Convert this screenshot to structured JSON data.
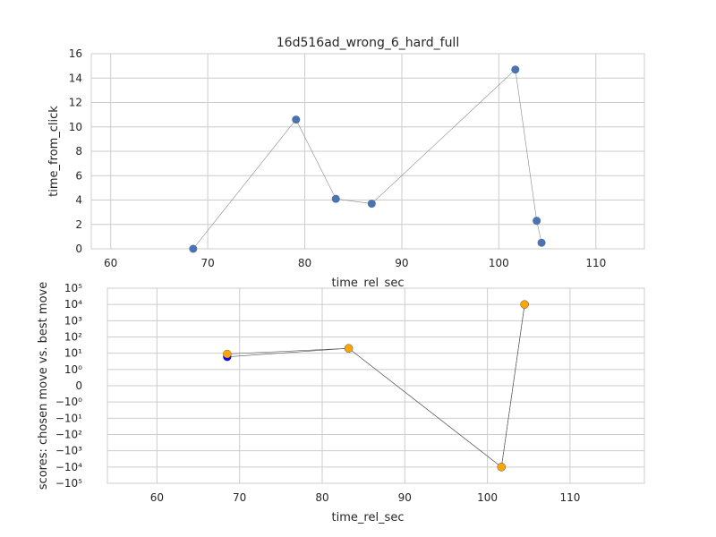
{
  "chart_data": [
    {
      "type": "line",
      "title": "16d516ad_wrong_6_hard_full",
      "xlabel": "time_rel_sec",
      "ylabel": "time_from_click",
      "xlim": [
        58,
        115
      ],
      "ylim": [
        0,
        16
      ],
      "xticks": [
        "60",
        "70",
        "80",
        "90",
        "100",
        "110"
      ],
      "yticks": [
        "0",
        "2",
        "4",
        "6",
        "8",
        "10",
        "12",
        "14",
        "16"
      ],
      "grid": true,
      "series": [
        {
          "color": "#4c72b0",
          "line_color": "#888888",
          "x": [
            68.5,
            79.1,
            83.2,
            86.9,
            101.7,
            103.9,
            104.4
          ],
          "y": [
            0.0,
            10.6,
            4.1,
            3.7,
            14.7,
            2.3,
            0.5
          ]
        }
      ]
    },
    {
      "type": "line",
      "title": "",
      "xlabel": "time_rel_sec",
      "ylabel": "scores: chosen move vs. best move",
      "xlim": [
        54,
        119
      ],
      "yscale": "symlog",
      "ylim": [
        -100000,
        100000
      ],
      "xticks": [
        "60",
        "70",
        "80",
        "90",
        "100",
        "110"
      ],
      "yticks": [
        "10⁵",
        "10⁴",
        "10³",
        "10²",
        "10¹",
        "10⁰",
        "0",
        "−10⁰",
        "−10¹",
        "−10²",
        "−10³",
        "−10⁴",
        "−10⁵"
      ],
      "grid": true,
      "series": [
        {
          "color": "#0000ff",
          "line_color": "#555555",
          "x": [
            68.5,
            83.2,
            101.7,
            104.5
          ],
          "y": [
            6,
            20,
            -10000,
            10000
          ]
        },
        {
          "color": "#ffa500",
          "line_color": "#555555",
          "x": [
            68.5,
            83.2,
            101.7,
            104.5
          ],
          "y": [
            9,
            20,
            -10000,
            10000
          ]
        }
      ]
    }
  ]
}
